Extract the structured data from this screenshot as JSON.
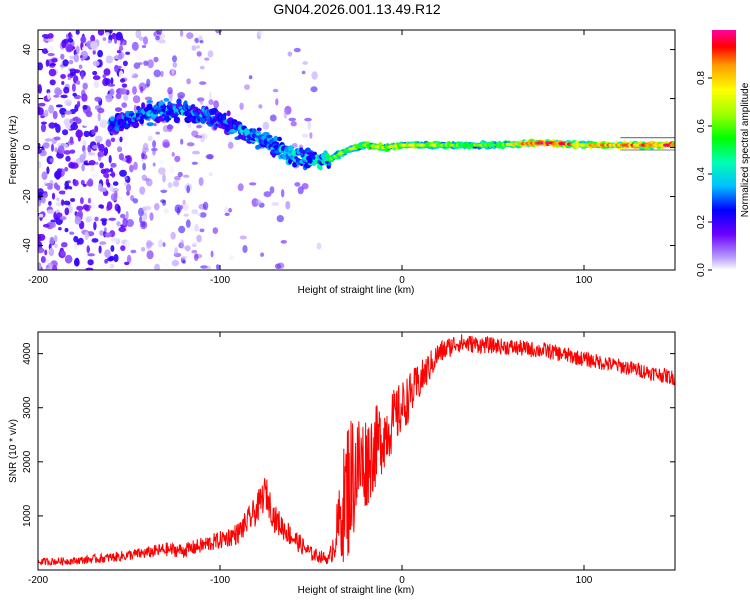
{
  "page": {
    "title": "GN04.2026.001.13.49.R12"
  },
  "colors": {
    "snr_line": "#ff0000",
    "ridge_low": "#5a00ff",
    "ridge_mid": "#00ffb0",
    "ridge_high": "#ff0000",
    "background": "#ffffff"
  },
  "chart_data": [
    {
      "type": "heatmap",
      "title": "",
      "xlabel": "Height of straight line (km)",
      "ylabel": "Frequency (Hz)",
      "xlim": [
        -200,
        150
      ],
      "ylim": [
        -50,
        48
      ],
      "x_ticks": [
        -200,
        -100,
        0,
        100
      ],
      "x_tick_labels": [
        "-200",
        "-100",
        "0",
        "100"
      ],
      "y_ticks": [
        -40,
        -20,
        0,
        20,
        40
      ],
      "y_tick_labels": [
        "-40",
        "-20",
        "0",
        "20",
        "40"
      ],
      "colorbar": {
        "label": "Normalized spectral amplitude",
        "range": [
          0.0,
          1.0
        ],
        "ticks": [
          0.0,
          0.2,
          0.4,
          0.6,
          0.8
        ],
        "tick_labels": [
          "0.0",
          "0.2",
          "0.4",
          "0.6",
          "0.8"
        ],
        "colormap": "rainbow"
      },
      "ridge": {
        "x": [
          -155,
          -140,
          -120,
          -100,
          -80,
          -60,
          -50,
          -40,
          -30,
          -20,
          -10,
          0,
          20,
          50,
          80,
          100,
          130,
          150
        ],
        "frequency": [
          10,
          14,
          15,
          11,
          4,
          -3,
          -5,
          -5,
          -1,
          1,
          0,
          1,
          1,
          1,
          2,
          1,
          1,
          1
        ],
        "amplitude": [
          0.35,
          0.4,
          0.38,
          0.36,
          0.4,
          0.42,
          0.45,
          0.5,
          0.55,
          0.6,
          0.6,
          0.62,
          0.58,
          0.5,
          0.9,
          0.7,
          0.8,
          0.85
        ]
      },
      "noise_region": {
        "x_range": [
          -200,
          -105
        ],
        "frequency_range": [
          -50,
          48
        ],
        "amplitude_range": [
          0.0,
          0.22
        ]
      }
    },
    {
      "type": "line",
      "title": "",
      "xlabel": "Height of straight line (km)",
      "ylabel": "SNR (10 * v/v)",
      "xlim": [
        -200,
        150
      ],
      "ylim": [
        0,
        4400
      ],
      "x_ticks": [
        -200,
        -100,
        0,
        100
      ],
      "x_tick_labels": [
        "-200",
        "-100",
        "0",
        "100"
      ],
      "y_ticks": [
        1000,
        2000,
        3000,
        4000
      ],
      "y_tick_labels": [
        "1000",
        "2000",
        "3000",
        "4000"
      ],
      "series": [
        {
          "name": "SNR",
          "x": [
            -200,
            -180,
            -160,
            -140,
            -130,
            -120,
            -100,
            -90,
            -80,
            -75,
            -70,
            -60,
            -50,
            -40,
            -35,
            -30,
            -25,
            -20,
            -10,
            0,
            10,
            20,
            30,
            50,
            80,
            100,
            130,
            150
          ],
          "values": [
            150,
            170,
            230,
            320,
            380,
            360,
            550,
            680,
            1100,
            1450,
            950,
            600,
            300,
            200,
            800,
            1500,
            1900,
            2000,
            2500,
            3000,
            3500,
            4000,
            4200,
            4150,
            4050,
            3900,
            3700,
            3550
          ],
          "noise_amplitude": [
            70,
            70,
            90,
            110,
            130,
            130,
            170,
            200,
            280,
            320,
            260,
            200,
            140,
            100,
            600,
            1400,
            1100,
            900,
            650,
            500,
            350,
            220,
            180,
            150,
            150,
            140,
            140,
            140
          ]
        }
      ]
    }
  ]
}
